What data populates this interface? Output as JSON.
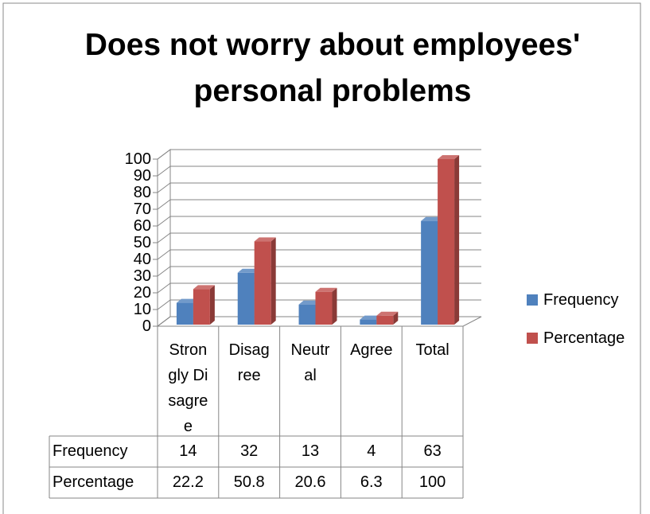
{
  "chart_data": {
    "type": "bar3d",
    "title": "Does not worry about employees' personal problems",
    "categories": [
      "Strongly Disagree",
      "Disagree",
      "Neutral",
      "Agree",
      "Total"
    ],
    "series": [
      {
        "name": "Frequency",
        "color": "#4f81bd",
        "values": [
          14,
          32,
          13,
          4,
          63
        ]
      },
      {
        "name": "Percentage",
        "color": "#c0504d",
        "values": [
          22.2,
          50.8,
          20.6,
          6.3,
          100
        ]
      }
    ],
    "ylim": [
      0,
      100
    ],
    "yticks": [
      0,
      10,
      20,
      30,
      40,
      50,
      60,
      70,
      80,
      90,
      100
    ],
    "grid": true,
    "legend": "right",
    "data_table": true
  }
}
